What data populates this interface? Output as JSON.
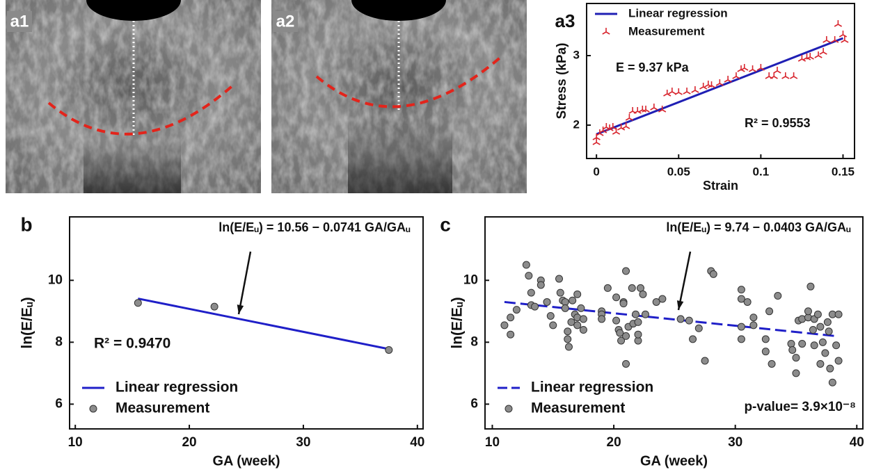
{
  "image_panels": [
    {
      "label": "a1"
    },
    {
      "label": "a2"
    }
  ],
  "chart_data": [
    {
      "type": "scatter",
      "label": "a3",
      "xlabel": "Strain",
      "ylabel": "Stress (kPa)",
      "xlim": [
        -0.006,
        0.157
      ],
      "ylim": [
        1.52,
        3.75
      ],
      "xticks": [
        0,
        0.05,
        0.1,
        0.15
      ],
      "yticks": [
        2,
        3
      ],
      "legend": "top-left",
      "annotations": [
        "E = 9.37 kPa",
        "R² = 0.9553"
      ],
      "series": [
        {
          "name": "Linear regression",
          "mode": "line",
          "color": "#1f1fb4",
          "dash": false,
          "x": [
            0,
            0.15
          ],
          "values": [
            1.87,
            3.25
          ]
        },
        {
          "name": "Measurement",
          "mode": "markers",
          "marker": "tri",
          "color": "#d8262f",
          "x": [
            0,
            0,
            0.002,
            0.004,
            0.006,
            0.008,
            0.01,
            0.012,
            0.015,
            0.018,
            0.02,
            0.022,
            0.025,
            0.028,
            0.03,
            0.035,
            0.04,
            0.043,
            0.046,
            0.05,
            0.055,
            0.06,
            0.065,
            0.068,
            0.07,
            0.075,
            0.08,
            0.085,
            0.088,
            0.09,
            0.095,
            0.1,
            0.105,
            0.108,
            0.11,
            0.115,
            0.12,
            0.125,
            0.128,
            0.13,
            0.135,
            0.138,
            0.14,
            0.145,
            0.147,
            0.15,
            0.151
          ],
          "values": [
            1.75,
            1.82,
            1.88,
            1.92,
            1.97,
            1.95,
            1.97,
            1.9,
            1.96,
            1.98,
            2.1,
            2.2,
            2.2,
            2.22,
            2.22,
            2.25,
            2.22,
            2.45,
            2.48,
            2.47,
            2.48,
            2.5,
            2.55,
            2.58,
            2.57,
            2.6,
            2.65,
            2.7,
            2.8,
            2.82,
            2.8,
            2.82,
            2.7,
            2.7,
            2.78,
            2.7,
            2.7,
            2.95,
            2.97,
            2.98,
            3.0,
            3.05,
            3.22,
            3.22,
            3.45,
            3.3,
            3.22
          ]
        }
      ]
    },
    {
      "type": "scatter",
      "label": "b",
      "xlabel": "GA (week)",
      "ylabel": "ln(E/Eᵤ)",
      "xlim": [
        9.5,
        40.5
      ],
      "ylim": [
        5.2,
        12.05
      ],
      "xticks": [
        10,
        20,
        30,
        40
      ],
      "yticks": [
        6,
        8,
        10
      ],
      "legend": "bottom-left",
      "annotations": [
        "ln(E/Eᵤ) = 10.56 − 0.0741 GA/GAᵤ",
        "R² = 0.9470"
      ],
      "series": [
        {
          "name": "Linear regression",
          "mode": "line",
          "color": "#1f1fc8",
          "dash": false,
          "x": [
            15.5,
            37.5
          ],
          "values": [
            9.41,
            7.78
          ]
        },
        {
          "name": "Measurement",
          "mode": "markers",
          "marker": "circle",
          "color": "#8c8c8c",
          "x": [
            15.5,
            22.2,
            37.5
          ],
          "values": [
            9.27,
            9.15,
            7.75
          ]
        }
      ]
    },
    {
      "type": "scatter",
      "label": "c",
      "xlabel": "GA (week)",
      "ylabel": "ln(E/Eᵤ)",
      "xlim": [
        9.4,
        40.5
      ],
      "ylim": [
        5.2,
        12.05
      ],
      "xticks": [
        10,
        20,
        30,
        40
      ],
      "yticks": [
        6,
        8,
        10
      ],
      "legend": "bottom-left",
      "annotations": [
        "ln(E/Eᵤ) = 9.74 − 0.0403 GA/GAᵤ",
        "p-value= 3.9×10⁻⁸"
      ],
      "series": [
        {
          "name": "Linear regression",
          "mode": "line",
          "color": "#1f1fc8",
          "dash": true,
          "x": [
            11,
            38.5
          ],
          "values": [
            9.3,
            8.19
          ]
        },
        {
          "name": "Measurement",
          "mode": "markers",
          "marker": "circle",
          "color": "#8c8c8c",
          "x": [
            11,
            11.5,
            11.5,
            12,
            12.8,
            13,
            13.2,
            13.2,
            14,
            14,
            13.5,
            14.5,
            14.8,
            15,
            15.5,
            15.6,
            15.8,
            16,
            16,
            16.2,
            16.2,
            16.3,
            16.5,
            16.6,
            16.8,
            17,
            17,
            17,
            17.3,
            17.5,
            17.5,
            19,
            19,
            19,
            19.5,
            20.2,
            20.2,
            20.4,
            20.5,
            20.6,
            20.8,
            20.8,
            21,
            21,
            21,
            21.2,
            21.5,
            21.6,
            21.8,
            22,
            22,
            22,
            22.2,
            22.4,
            22.6,
            23.5,
            24,
            25.5,
            26.2,
            26.5,
            27,
            27.5,
            28,
            28.2,
            30.5,
            30.5,
            30.5,
            30.5,
            31,
            31.5,
            31.5,
            32.5,
            32.5,
            33,
            32.8,
            33.5,
            34.6,
            34.7,
            35,
            35,
            35.2,
            35.5,
            35.5,
            36,
            36,
            36.2,
            36.4,
            36.5,
            36.5,
            36.8,
            37,
            37,
            37.2,
            37.4,
            37.6,
            37.7,
            37.8,
            38,
            38,
            38.3,
            38.5,
            38.5
          ],
          "values": [
            8.55,
            8.25,
            8.8,
            9.05,
            10.5,
            10.15,
            9.6,
            9.2,
            10.0,
            9.85,
            9.15,
            9.3,
            8.85,
            8.55,
            10.05,
            9.6,
            9.35,
            9.3,
            9.1,
            8.35,
            8.1,
            7.85,
            8.65,
            9.35,
            8.9,
            8.8,
            8.55,
            9.55,
            9.1,
            8.75,
            8.4,
            9.0,
            8.9,
            8.75,
            9.75,
            9.45,
            8.7,
            8.4,
            8.3,
            8.05,
            9.3,
            9.25,
            10.3,
            8.2,
            7.3,
            8.5,
            9.75,
            8.6,
            8.9,
            8.05,
            8.25,
            8.65,
            9.75,
            9.55,
            8.9,
            9.3,
            9.4,
            8.75,
            8.7,
            8.1,
            8.45,
            7.4,
            10.3,
            10.2,
            9.7,
            9.4,
            8.5,
            8.1,
            9.3,
            8.8,
            8.55,
            8.1,
            7.7,
            7.3,
            9.0,
            9.5,
            7.95,
            7.75,
            7.5,
            7.0,
            8.7,
            7.95,
            8.75,
            8.8,
            9.0,
            9.8,
            8.4,
            8.75,
            7.9,
            8.9,
            8.5,
            7.3,
            8.0,
            7.65,
            8.65,
            8.35,
            7.15,
            8.9,
            6.7,
            7.9,
            8.9,
            7.4
          ]
        }
      ]
    }
  ]
}
